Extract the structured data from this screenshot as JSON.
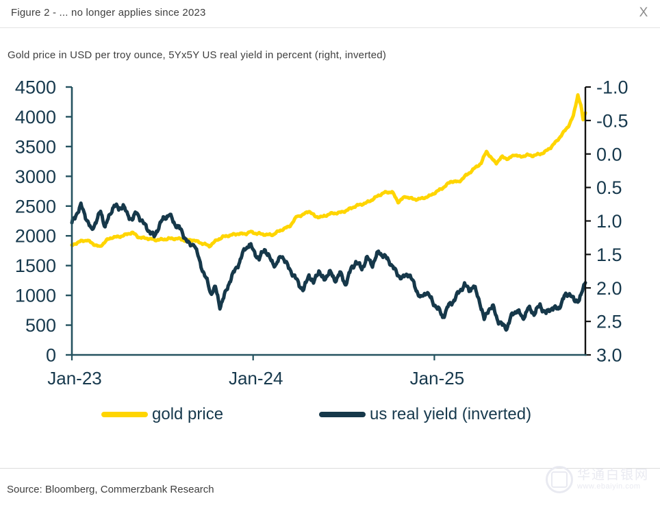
{
  "header": {
    "title": "Figure 2 - ... no longer applies since 2023",
    "close_label": "X"
  },
  "subtitle": "Gold price in USD per troy ounce, 5Yx5Y US real yield in percent (right, inverted)",
  "source": "Source: Bloomberg, Commerzbank Research",
  "watermark": {
    "site_name": "华通白银网",
    "url": "www.ebaiyin.com"
  },
  "colors": {
    "gold": "#FFD500",
    "navy": "#16384A",
    "axis_teal": "#24525F",
    "axis_black": "#111111",
    "tick_label": "#17394D"
  },
  "legend": [
    {
      "label": "gold price",
      "color": "#FFD500"
    },
    {
      "label": "us real yield (inverted)",
      "color": "#16384A"
    }
  ],
  "chart_data": {
    "type": "line",
    "title": "Gold price vs 5Yx5Y US real yield (inverted)",
    "x_axis": {
      "unit": "months since Jan-2023",
      "t_min": 0,
      "t_max": 34,
      "ticks": [
        {
          "t": 0,
          "label": "Jan-23"
        },
        {
          "t": 12,
          "label": "Jan-24"
        },
        {
          "t": 24,
          "label": "Jan-25"
        }
      ]
    },
    "left_axis": {
      "label": "gold price in USD per troy ounce",
      "min": 0,
      "max": 4500,
      "tick_step": 500,
      "tick_labels": [
        "4500",
        "4000",
        "3500",
        "3000",
        "2500",
        "2000",
        "1500",
        "1000",
        "500",
        "0"
      ]
    },
    "right_axis": {
      "label": "5Yx5Y US real yield in percent (inverted)",
      "min": -1.0,
      "max": 3.0,
      "tick_step": 0.5,
      "inverted": true,
      "tick_labels": [
        "-1.0",
        "-0.5",
        "0.0",
        "0.5",
        "1.0",
        "1.5",
        "2.0",
        "2.5",
        "3.0"
      ]
    },
    "grid": false,
    "legend_position": "bottom",
    "series": [
      {
        "name": "gold price",
        "axis": "left",
        "color": "#FFD500",
        "points": [
          [
            0,
            1840
          ],
          [
            0.25,
            1872
          ],
          [
            0.6,
            1900
          ],
          [
            1.0,
            1928
          ],
          [
            1.5,
            1862
          ],
          [
            1.85,
            1812
          ],
          [
            2.3,
            1918
          ],
          [
            2.7,
            1978
          ],
          [
            3.1,
            1992
          ],
          [
            3.5,
            2012
          ],
          [
            4.0,
            2048
          ],
          [
            4.4,
            1982
          ],
          [
            5.0,
            1962
          ],
          [
            5.5,
            1922
          ],
          [
            6.0,
            1938
          ],
          [
            6.4,
            1962
          ],
          [
            7.0,
            1948
          ],
          [
            7.5,
            1918
          ],
          [
            8.0,
            1942
          ],
          [
            8.6,
            1872
          ],
          [
            9.1,
            1822
          ],
          [
            9.6,
            1938
          ],
          [
            10.0,
            1985
          ],
          [
            10.5,
            2002
          ],
          [
            11.0,
            2038
          ],
          [
            11.5,
            2042
          ],
          [
            11.8,
            2065
          ],
          [
            12.2,
            2032
          ],
          [
            12.8,
            2028
          ],
          [
            13.3,
            2022
          ],
          [
            13.8,
            2082
          ],
          [
            14.4,
            2162
          ],
          [
            14.9,
            2332
          ],
          [
            15.3,
            2345
          ],
          [
            15.7,
            2412
          ],
          [
            16.1,
            2332
          ],
          [
            16.6,
            2322
          ],
          [
            17.1,
            2362
          ],
          [
            17.7,
            2392
          ],
          [
            18.3,
            2442
          ],
          [
            18.9,
            2502
          ],
          [
            19.5,
            2562
          ],
          [
            20.1,
            2642
          ],
          [
            20.7,
            2722
          ],
          [
            21.2,
            2748
          ],
          [
            21.6,
            2572
          ],
          [
            22.1,
            2652
          ],
          [
            22.6,
            2618
          ],
          [
            23.2,
            2632
          ],
          [
            23.7,
            2662
          ],
          [
            24.1,
            2732
          ],
          [
            24.6,
            2822
          ],
          [
            25.1,
            2912
          ],
          [
            25.6,
            2898
          ],
          [
            26.1,
            3022
          ],
          [
            26.6,
            3122
          ],
          [
            27.1,
            3212
          ],
          [
            27.45,
            3422
          ],
          [
            27.8,
            3302
          ],
          [
            28.1,
            3232
          ],
          [
            28.5,
            3322
          ],
          [
            28.9,
            3282
          ],
          [
            29.3,
            3372
          ],
          [
            29.7,
            3332
          ],
          [
            30.1,
            3352
          ],
          [
            30.5,
            3338
          ],
          [
            30.9,
            3372
          ],
          [
            31.3,
            3412
          ],
          [
            31.7,
            3482
          ],
          [
            32.1,
            3582
          ],
          [
            32.5,
            3722
          ],
          [
            32.9,
            3862
          ],
          [
            33.2,
            4012
          ],
          [
            33.5,
            4362
          ],
          [
            33.7,
            4182
          ],
          [
            33.85,
            3942
          ],
          [
            34,
            4065
          ]
        ]
      },
      {
        "name": "us real yield (inverted)",
        "axis": "right",
        "color": "#16384A",
        "points": [
          [
            0,
            1.02
          ],
          [
            0.3,
            0.88
          ],
          [
            0.6,
            0.78
          ],
          [
            1.0,
            1.0
          ],
          [
            1.3,
            1.15
          ],
          [
            1.6,
            0.98
          ],
          [
            1.9,
            0.85
          ],
          [
            2.2,
            1.08
          ],
          [
            2.5,
            0.95
          ],
          [
            2.8,
            0.76
          ],
          [
            3.1,
            0.82
          ],
          [
            3.4,
            0.74
          ],
          [
            3.7,
            0.92
          ],
          [
            4.0,
            0.98
          ],
          [
            4.3,
            0.9
          ],
          [
            4.7,
            1.02
          ],
          [
            5.1,
            1.12
          ],
          [
            5.45,
            1.24
          ],
          [
            5.8,
            1.08
          ],
          [
            6.1,
            0.97
          ],
          [
            6.45,
            0.89
          ],
          [
            6.8,
            1.02
          ],
          [
            7.1,
            1.1
          ],
          [
            7.5,
            1.27
          ],
          [
            7.8,
            1.38
          ],
          [
            8.1,
            1.32
          ],
          [
            8.5,
            1.62
          ],
          [
            8.9,
            1.88
          ],
          [
            9.2,
            2.1
          ],
          [
            9.5,
            2.0
          ],
          [
            9.8,
            2.26
          ],
          [
            10.1,
            2.1
          ],
          [
            10.45,
            1.9
          ],
          [
            10.8,
            1.76
          ],
          [
            11.1,
            1.62
          ],
          [
            11.45,
            1.4
          ],
          [
            11.75,
            1.33
          ],
          [
            12.1,
            1.47
          ],
          [
            12.4,
            1.6
          ],
          [
            12.75,
            1.42
          ],
          [
            13.1,
            1.55
          ],
          [
            13.5,
            1.65
          ],
          [
            13.9,
            1.52
          ],
          [
            14.3,
            1.7
          ],
          [
            14.7,
            1.8
          ],
          [
            15.1,
            1.95
          ],
          [
            15.35,
            2.03
          ],
          [
            15.7,
            1.82
          ],
          [
            16.0,
            1.95
          ],
          [
            16.35,
            1.72
          ],
          [
            16.7,
            1.88
          ],
          [
            17.05,
            1.74
          ],
          [
            17.4,
            1.92
          ],
          [
            17.75,
            1.78
          ],
          [
            18.1,
            1.93
          ],
          [
            18.5,
            1.7
          ],
          [
            18.8,
            1.62
          ],
          [
            19.2,
            1.73
          ],
          [
            19.55,
            1.55
          ],
          [
            19.9,
            1.63
          ],
          [
            20.3,
            1.46
          ],
          [
            20.7,
            1.55
          ],
          [
            21.1,
            1.63
          ],
          [
            21.5,
            1.76
          ],
          [
            21.9,
            1.85
          ],
          [
            22.3,
            1.8
          ],
          [
            22.7,
            1.98
          ],
          [
            23.1,
            2.14
          ],
          [
            23.5,
            2.04
          ],
          [
            23.9,
            2.24
          ],
          [
            24.25,
            2.32
          ],
          [
            24.55,
            2.43
          ],
          [
            24.9,
            2.26
          ],
          [
            25.3,
            2.18
          ],
          [
            25.65,
            2.08
          ],
          [
            26.0,
            1.96
          ],
          [
            26.3,
            2.02
          ],
          [
            26.6,
            1.95
          ],
          [
            27.0,
            2.2
          ],
          [
            27.3,
            2.5
          ],
          [
            27.6,
            2.32
          ],
          [
            27.9,
            2.28
          ],
          [
            28.2,
            2.46
          ],
          [
            28.5,
            2.55
          ],
          [
            28.8,
            2.61
          ],
          [
            29.15,
            2.42
          ],
          [
            29.5,
            2.32
          ],
          [
            29.85,
            2.44
          ],
          [
            30.2,
            2.3
          ],
          [
            30.6,
            2.4
          ],
          [
            31.0,
            2.27
          ],
          [
            31.4,
            2.36
          ],
          [
            31.8,
            2.28
          ],
          [
            32.2,
            2.34
          ],
          [
            32.6,
            2.14
          ],
          [
            33.0,
            2.06
          ],
          [
            33.3,
            2.2
          ],
          [
            33.6,
            2.16
          ],
          [
            33.85,
            2.05
          ],
          [
            34,
            1.93
          ]
        ]
      }
    ]
  }
}
